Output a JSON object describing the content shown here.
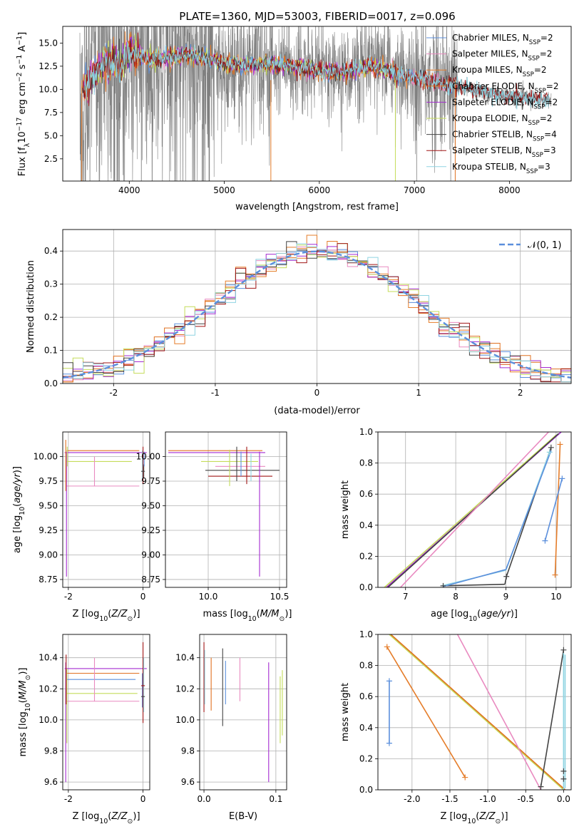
{
  "title": "PLATE=1360, MJD=53003, FIBERID=0017, z=0.096",
  "colors": {
    "Chabrier MILES": "#5b8fdc",
    "Salpeter MILES": "#e98ac0",
    "Kroupa MILES": "#e57d2a",
    "Chabrier ELODIE": "#e07020",
    "Salpeter ELODIE": "#a42bd1",
    "Kroupa ELODIE": "#c4dc5a",
    "Chabrier STELIB": "#444444",
    "Salpeter STELIB": "#a01515",
    "Kroupa STELIB": "#8fd4e2",
    "data": "#7f7f7f"
  },
  "chart_data": [
    {
      "id": "spectrum",
      "type": "line",
      "xlabel": "wavelength [Angstrom, rest frame]",
      "ylabel": "Flux [f_λ 10^-17 erg cm^-2 s^-1 A^-1]",
      "xlim": [
        3300,
        8650
      ],
      "ylim": [
        0.1,
        16.8
      ],
      "xticks": [
        4000,
        5000,
        6000,
        7000,
        8000
      ],
      "yticks": [
        2.5,
        5.0,
        7.5,
        10.0,
        12.5,
        15.0
      ],
      "grid": false,
      "legend_position": "upper right",
      "legend": [
        {
          "label": "Chabrier MILES, N",
          "sub": "SSP",
          "tail": "=2",
          "color": "#5b8fdc"
        },
        {
          "label": "Salpeter MILES, N",
          "sub": "SSP",
          "tail": "=2",
          "color": "#e98ac0"
        },
        {
          "label": "Kroupa MILES, N",
          "sub": "SSP",
          "tail": "=2",
          "color": "#e57d2a"
        },
        {
          "label": "Chabrier ELODIE, N",
          "sub": "SSP",
          "tail": "=2",
          "color": "#e07020"
        },
        {
          "label": "Salpeter ELODIE, N",
          "sub": "SSP",
          "tail": "=2",
          "color": "#a42bd1"
        },
        {
          "label": "Kroupa ELODIE, N",
          "sub": "SSP",
          "tail": "=2",
          "color": "#c4dc5a"
        },
        {
          "label": "Chabrier STELIB, N",
          "sub": "SSP",
          "tail": "=4",
          "color": "#444444"
        },
        {
          "label": "Salpeter STELIB, N",
          "sub": "SSP",
          "tail": "=3",
          "color": "#a01515"
        },
        {
          "label": "Kroupa STELIB, N",
          "sub": "SSP",
          "tail": "=3",
          "color": "#8fd4e2"
        }
      ],
      "continuum": [
        [
          3500,
          9.8
        ],
        [
          3600,
          11.0
        ],
        [
          3700,
          12.6
        ],
        [
          3800,
          13.0
        ],
        [
          3900,
          12.3
        ],
        [
          4000,
          14.2
        ],
        [
          4100,
          13.8
        ],
        [
          4200,
          13.2
        ],
        [
          4400,
          13.4
        ],
        [
          4600,
          13.8
        ],
        [
          4800,
          13.5
        ],
        [
          5000,
          12.8
        ],
        [
          5200,
          12.6
        ],
        [
          5500,
          12.8
        ],
        [
          5800,
          12.4
        ],
        [
          6000,
          12.0
        ],
        [
          6300,
          11.9
        ],
        [
          6563,
          12.6
        ],
        [
          6800,
          11.7
        ],
        [
          7000,
          11.3
        ],
        [
          7300,
          10.6
        ],
        [
          7600,
          10.0
        ],
        [
          7900,
          9.4
        ],
        [
          8200,
          9.0
        ],
        [
          8400,
          8.9
        ]
      ]
    },
    {
      "id": "residuals",
      "type": "histogram",
      "xlabel": "(data-model)/error",
      "ylabel": "Normed distribution",
      "xlim": [
        -2.5,
        2.5
      ],
      "ylim": [
        0,
        0.465
      ],
      "xticks": [
        -2,
        -1,
        0,
        1,
        2
      ],
      "yticks": [
        0.0,
        0.1,
        0.2,
        0.3,
        0.4
      ],
      "grid": true,
      "legend_position": "upper right",
      "legend": [
        {
          "label": "𝒩(0, 1)",
          "color": "#5b8fdc",
          "style": "dashed"
        }
      ],
      "bin_width": 0.1
    },
    {
      "id": "age-vs-metallicity",
      "type": "errorbar",
      "xlabel": "Z [log10(Z/Z⊙)]",
      "ylabel": "age [log10(age/yr)]",
      "xlim": [
        -2.15,
        0.18
      ],
      "ylim": [
        8.67,
        10.25
      ],
      "xticks": [
        -2,
        0
      ],
      "yticks": [
        8.75,
        9.0,
        9.25,
        9.5,
        9.75,
        10.0
      ],
      "grid": true
    },
    {
      "id": "age-vs-mass",
      "type": "errorbar",
      "xlabel": "mass [log10(M/M⊙)]",
      "ylabel": "",
      "xlim": [
        9.7,
        10.55
      ],
      "ylim": [
        8.67,
        10.25
      ],
      "xticks": [
        10.0,
        10.5
      ],
      "yticks": [
        8.75,
        9.0,
        9.25,
        9.5,
        9.75,
        10.0
      ],
      "grid": true
    },
    {
      "id": "mass-weight-vs-age",
      "type": "line",
      "xlabel": "age [log10(age/yr)]",
      "ylabel": "mass weight",
      "xlim": [
        6.45,
        10.3
      ],
      "ylim": [
        0,
        1
      ],
      "xticks": [
        7,
        8,
        9,
        10
      ],
      "yticks": [
        0.0,
        0.2,
        0.4,
        0.6,
        0.8,
        1.0
      ],
      "grid": true
    },
    {
      "id": "mass-vs-metallicity",
      "type": "errorbar",
      "xlabel": "Z [log10(Z/Z⊙)]",
      "ylabel": "mass [log10(M/M⊙)]",
      "xlim": [
        -2.15,
        0.18
      ],
      "ylim": [
        9.55,
        10.55
      ],
      "xticks": [
        -2,
        0
      ],
      "yticks": [
        9.6,
        9.8,
        10.0,
        10.2,
        10.4
      ],
      "grid": true
    },
    {
      "id": "mass-vs-extinction",
      "type": "errorbar",
      "xlabel": "E(B-V)",
      "ylabel": "",
      "xlim": [
        -0.006,
        0.115
      ],
      "ylim": [
        9.55,
        10.55
      ],
      "xticks": [
        0.0,
        0.1
      ],
      "yticks": [
        9.6,
        9.8,
        10.0,
        10.2,
        10.4
      ],
      "grid": true
    },
    {
      "id": "mass-weight-vs-metallicity",
      "type": "line",
      "xlabel": "Z [log10(Z/Z⊙)]",
      "ylabel": "mass weight",
      "xlim": [
        -2.45,
        0.1
      ],
      "ylim": [
        0,
        1
      ],
      "xticks": [
        -2.0,
        -1.5,
        -1.0,
        -0.5,
        0.0
      ],
      "yticks": [
        0.0,
        0.2,
        0.4,
        0.6,
        0.8,
        1.0
      ],
      "grid": true
    }
  ]
}
